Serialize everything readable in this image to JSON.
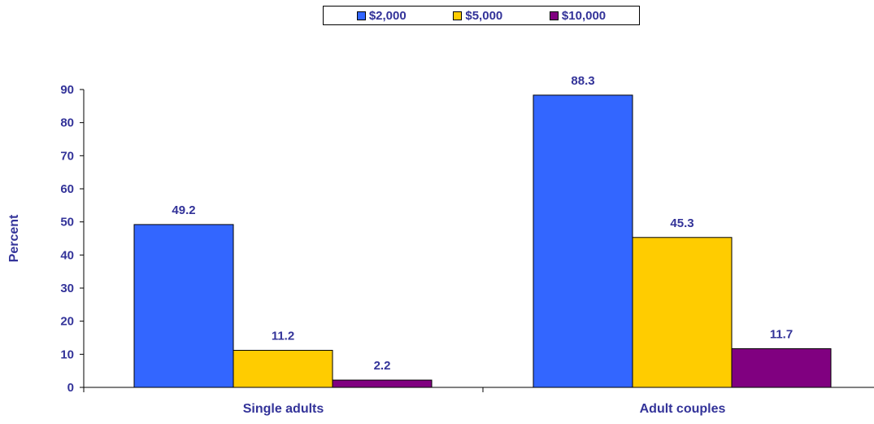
{
  "chart_data": {
    "type": "bar",
    "title": "",
    "xlabel": "",
    "ylabel": "Percent",
    "ylim": [
      0,
      90
    ],
    "yticks": [
      0,
      10,
      20,
      30,
      40,
      50,
      60,
      70,
      80,
      90
    ],
    "grid": false,
    "legend_position": "top",
    "categories": [
      "Single adults",
      "Adult couples"
    ],
    "series": [
      {
        "name": "$2,000",
        "color": "#3366FF",
        "values": [
          49.2,
          88.3
        ],
        "labels": [
          "49.2",
          "88.3"
        ]
      },
      {
        "name": "$5,000",
        "color": "#FFCC00",
        "values": [
          11.2,
          45.3
        ],
        "labels": [
          "11.2",
          "45.3"
        ]
      },
      {
        "name": "$10,000",
        "color": "#800080",
        "values": [
          2.2,
          11.7
        ],
        "labels": [
          "2.2",
          "11.7"
        ]
      }
    ]
  },
  "colors": {
    "text": "#333399",
    "axis": "#000000"
  }
}
